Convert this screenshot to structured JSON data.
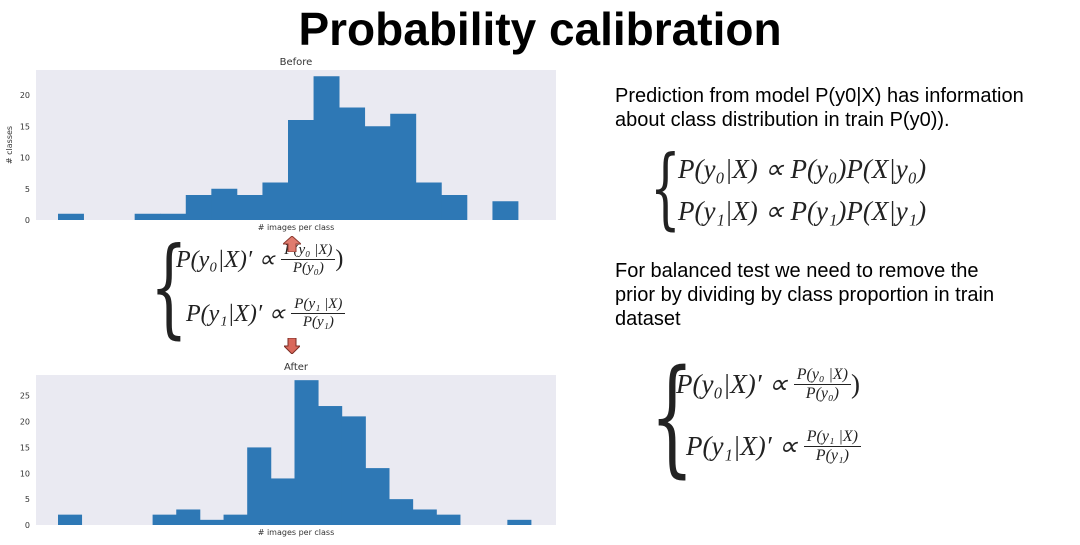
{
  "page": {
    "title": "Probability calibration"
  },
  "chart_data": [
    {
      "type": "bar",
      "title": "Before",
      "xlabel": "# images per class",
      "ylabel": "# classes",
      "ylim": [
        0,
        24
      ],
      "yticks": [
        0,
        5,
        10,
        15,
        20
      ],
      "values": [
        1,
        0,
        0,
        1,
        1,
        4,
        5,
        4,
        6,
        16,
        23,
        18,
        15,
        17,
        6,
        4,
        0,
        3
      ],
      "gap_after_index": [
        0,
        15
      ],
      "grid": false
    },
    {
      "type": "bar",
      "title": "After",
      "xlabel": "# images per class",
      "ylabel": "",
      "ylim": [
        0,
        29
      ],
      "yticks": [
        0,
        5,
        10,
        15,
        20,
        25
      ],
      "values": [
        2,
        0,
        0,
        0,
        2,
        3,
        1,
        2,
        15,
        9,
        28,
        23,
        21,
        11,
        5,
        3,
        2,
        0,
        0,
        1
      ],
      "grid": false
    }
  ],
  "formula_left": {
    "row1": {
      "lhs": "P(y₀|X)′ ∝",
      "num": "P(y₀ |X)",
      "den": "P(y₀)",
      "tail": ")"
    },
    "row2": {
      "lhs": "P(y₁|X)′ ∝",
      "num": "P(y₁ |X)",
      "den": "P(y₁)"
    }
  },
  "right": {
    "para1": "Prediction from model P(y0|X) has information about class distribution in train P(y0)).",
    "formula1": {
      "row1": "P(y₀|X) ∝ P(y₀)P(X|y₀)",
      "row2": "P(y₁|X) ∝ P(y₁)P(X|y₁)"
    },
    "para2": "For balanced test we need to remove the prior by dividing by class proportion in train dataset",
    "formula2": {
      "row1": {
        "lhs": "P(y₀|X)′ ∝",
        "num": "P(y₀ |X)",
        "den": "P(y₀)",
        "tail": ")"
      },
      "row2": {
        "lhs": "P(y₁|X)′ ∝",
        "num": "P(y₁ |X)",
        "den": "P(y₁)"
      }
    }
  },
  "colors": {
    "bar": "#2e78b5",
    "plot_bg": "#eaeaf2",
    "arrow_up": "#e07b6e",
    "arrow_down": "#e07b6e"
  }
}
